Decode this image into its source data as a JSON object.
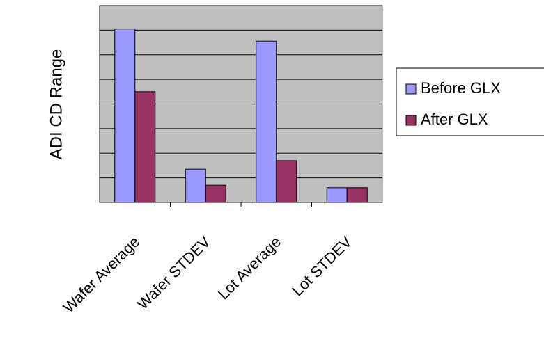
{
  "chart_data": {
    "type": "bar",
    "y_label": "ADI CD Range",
    "categories": [
      "Wafer Average",
      "Wafer STDEV",
      "Lot Average",
      "Lot STDEV"
    ],
    "series": [
      {
        "name": "Before GLX",
        "color": "#9999ff",
        "values": [
          7.05,
          1.35,
          6.55,
          0.6
        ]
      },
      {
        "name": "After GLX",
        "color": "#993366",
        "values": [
          4.5,
          0.7,
          1.7,
          0.6
        ]
      }
    ],
    "ylim": [
      0,
      8
    ],
    "yticks": [
      0,
      1,
      2,
      3,
      4,
      5,
      6,
      7,
      8
    ],
    "grid": true,
    "legend": "right"
  }
}
